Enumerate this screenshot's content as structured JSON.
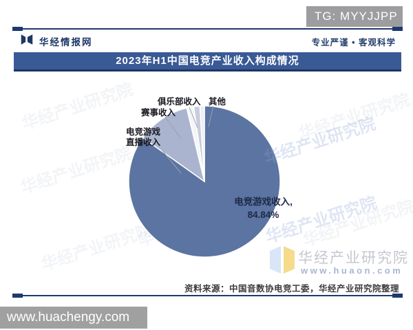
{
  "badge": {
    "label": "TG: MYYJJPP"
  },
  "header": {
    "brand": "华经情报网",
    "tagline": "专业严谨 • 客观科学"
  },
  "title_bar": {
    "title": "2023年H1中国电竞产业收入构成情况"
  },
  "chart_data": {
    "type": "pie",
    "title": "2023年H1中国电竞产业收入构成情况",
    "unit": "%",
    "direction": "clockwise",
    "start_angle": "12-oclock",
    "slices": [
      {
        "label": "电竞游戏收入",
        "value": 84.84,
        "color": "#5b74a1"
      },
      {
        "label": "电竞游戏直播收入",
        "value": 11.4,
        "color": "#aab4ce"
      },
      {
        "label": "赛事收入",
        "value": 1.5,
        "color": "#f3f5f9"
      },
      {
        "label": "俱乐部收入",
        "value": 1.3,
        "color": "#c6cddc"
      },
      {
        "label": "其他",
        "value": 0.96,
        "color": "#edeff5"
      }
    ]
  },
  "pie_labels": {
    "main_line1": "电竞游戏收入,",
    "main_line2": "84.84%"
  },
  "brand_watermark": {
    "name": "华经产业研究院",
    "url": "www.huaon.com"
  },
  "source_line": "资料来源：中国音数协电竞工委，华经产业研究院整理",
  "bottom_bar": {
    "url": "www.huachengy.com"
  },
  "background_watermark_text": "华经产业研究院"
}
